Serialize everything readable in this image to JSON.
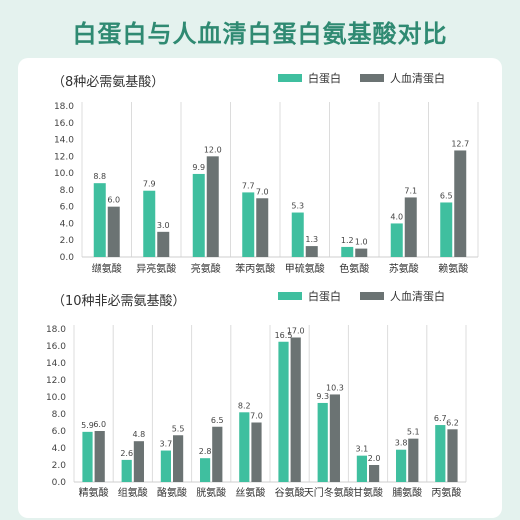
{
  "title": "白蛋白与人血清白蛋白氨基酸对比",
  "colors": {
    "teal": "#3fbf9f",
    "gray": "#6b7373",
    "title": "#2f8a72",
    "background": "#e4f2ee"
  },
  "chart_data": [
    {
      "type": "bar",
      "title": "（8种必需氨基酸）",
      "categories": [
        "缬氨酸",
        "异亮氨酸",
        "亮氨酸",
        "苯丙氨酸",
        "甲硫氨酸",
        "色氨酸",
        "苏氨酸",
        "赖氨酸"
      ],
      "series": [
        {
          "name": "白蛋白",
          "color": "#3fbf9f",
          "values": [
            8.8,
            7.9,
            9.9,
            7.7,
            5.3,
            1.2,
            4.0,
            6.5
          ]
        },
        {
          "name": "人血清蛋白",
          "color": "#6b7373",
          "values": [
            6.0,
            3.0,
            12.0,
            7.0,
            1.3,
            1.0,
            7.1,
            12.7
          ]
        }
      ],
      "value_labels": [
        [
          "8.8",
          "7.9",
          "9.9",
          "7.7",
          "5.3",
          "1.2",
          "4.0",
          "6.5"
        ],
        [
          "6.0",
          "3.0",
          "12.0",
          "7.0",
          "1.3",
          "1.0",
          "7.1",
          "12.7"
        ]
      ],
      "ylim": [
        0,
        18
      ],
      "yticks": [
        0,
        2,
        4,
        6,
        8,
        10,
        12,
        14,
        16,
        18
      ],
      "ytick_labels": [
        "0.0",
        "2.0",
        "4.0",
        "6.0",
        "8.0",
        "10.0",
        "12.0",
        "14.0",
        "16.0",
        "18.0"
      ],
      "legend": "top-right",
      "grid": "vertical-separators"
    },
    {
      "type": "bar",
      "title": "（10种非必需氨基酸）",
      "categories": [
        "精氨酸",
        "组氨酸",
        "酪氨酸",
        "胱氨酸",
        "丝氨酸",
        "谷氨酸",
        "天门冬氨酸",
        "甘氨酸",
        "脯氨酸",
        "丙氨酸"
      ],
      "series": [
        {
          "name": "白蛋白",
          "color": "#3fbf9f",
          "values": [
            5.9,
            2.6,
            3.7,
            2.8,
            8.2,
            16.5,
            9.3,
            3.1,
            3.8,
            6.7
          ]
        },
        {
          "name": "人血清蛋白",
          "color": "#6b7373",
          "values": [
            6.0,
            4.8,
            5.5,
            6.5,
            7.0,
            17.0,
            10.3,
            2.0,
            5.1,
            6.2
          ]
        }
      ],
      "value_labels": [
        [
          "5.9",
          "2.6",
          "3.7",
          "2.8",
          "8.2",
          "16.5",
          "9.3",
          "3.1",
          "3.8",
          "6.7"
        ],
        [
          "6.0",
          "4.8",
          "5.5",
          "6.5",
          "7.0",
          "17.0",
          "10.3",
          "2.0",
          "5.1",
          "6.2"
        ]
      ],
      "ylim": [
        0,
        18
      ],
      "yticks": [
        0,
        2,
        4,
        6,
        8,
        10,
        12,
        14,
        16,
        18
      ],
      "ytick_labels": [
        "0.0",
        "2.0",
        "4.0",
        "6.0",
        "8.0",
        "10.0",
        "12.0",
        "14.0",
        "16.0",
        "18.0"
      ],
      "legend": "top-right",
      "grid": "vertical-separators"
    }
  ]
}
